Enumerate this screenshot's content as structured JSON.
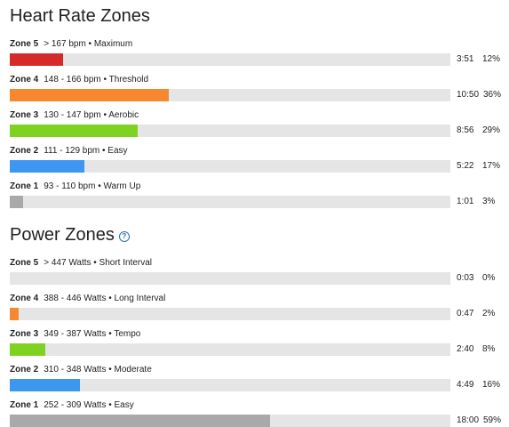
{
  "heart_rate": {
    "title": "Heart Rate Zones",
    "zones": [
      {
        "name": "Zone 5",
        "range": "> 167 bpm • Maximum",
        "time": "3:51",
        "percent": "12%",
        "fill": 0.12,
        "color": "#d42a2a"
      },
      {
        "name": "Zone 4",
        "range": "148 - 166 bpm • Threshold",
        "time": "10:50",
        "percent": "36%",
        "fill": 0.36,
        "color": "#f7882f"
      },
      {
        "name": "Zone 3",
        "range": "130 - 147 bpm • Aerobic",
        "time": "8:56",
        "percent": "29%",
        "fill": 0.29,
        "color": "#7ed321"
      },
      {
        "name": "Zone 2",
        "range": "111 - 129 bpm • Easy",
        "time": "5:22",
        "percent": "17%",
        "fill": 0.17,
        "color": "#3d96f0"
      },
      {
        "name": "Zone 1",
        "range": "93 - 110 bpm • Warm Up",
        "time": "1:01",
        "percent": "3%",
        "fill": 0.03,
        "color": "#a9a9a9"
      }
    ]
  },
  "power": {
    "title": "Power Zones",
    "help_icon": "question-circle-icon",
    "zones": [
      {
        "name": "Zone 5",
        "range": "> 447 Watts • Short Interval",
        "time": "0:03",
        "percent": "0%",
        "fill": 0.0,
        "color": "#d42a2a"
      },
      {
        "name": "Zone 4",
        "range": "388 - 446 Watts • Long Interval",
        "time": "0:47",
        "percent": "2%",
        "fill": 0.02,
        "color": "#f7882f"
      },
      {
        "name": "Zone 3",
        "range": "349 - 387 Watts • Tempo",
        "time": "2:40",
        "percent": "8%",
        "fill": 0.08,
        "color": "#7ed321"
      },
      {
        "name": "Zone 2",
        "range": "310 - 348 Watts • Moderate",
        "time": "4:49",
        "percent": "16%",
        "fill": 0.16,
        "color": "#3d96f0"
      },
      {
        "name": "Zone 1",
        "range": "252 - 309 Watts • Easy",
        "time": "18:00",
        "percent": "59%",
        "fill": 0.59,
        "color": "#a9a9a9"
      }
    ]
  }
}
